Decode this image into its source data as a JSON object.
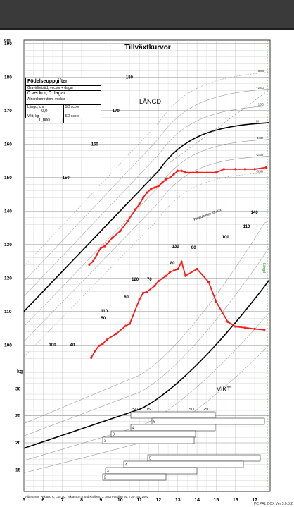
{
  "chart_data": {
    "type": "line",
    "title": "Tillväxtkurvor",
    "height_label": "LÄNGD",
    "weight_label": "VIKT",
    "height_unit": "cm",
    "weight_unit": "kg",
    "x_ticks": [
      "5",
      "6",
      "7",
      "8",
      "9",
      "10",
      "11",
      "12",
      "13",
      "14",
      "15",
      "16",
      "17"
    ],
    "xlim": [
      5,
      17.8
    ],
    "height_axis": {
      "ticks": [
        "190",
        "180",
        "170",
        "160",
        "150",
        "140",
        "130",
        "120",
        "110",
        "100"
      ],
      "ylim": [
        95,
        191
      ]
    },
    "weight_axis": {
      "ticks": [
        "30",
        "25",
        "20",
        "15"
      ],
      "ylim": [
        11,
        35
      ]
    },
    "inner_height_labels": [
      "180",
      "170",
      "160",
      "150",
      "140",
      "130",
      "120",
      "110",
      "100"
    ],
    "inner_weight_labels": [
      "110",
      "100",
      "90",
      "80",
      "70",
      "60",
      "50",
      "40"
    ],
    "sd_labels": [
      "+3SD",
      "+2SD",
      "+1SD",
      "M",
      "-1SD",
      "-2SD",
      "-3SD"
    ],
    "prepubertal_label": "Prepubertal tillväxt",
    "height_series": {
      "name": "Längd",
      "x": [
        8.4,
        8.6,
        8.8,
        9.0,
        9.2,
        9.6,
        10.0,
        10.4,
        10.8,
        11.0,
        11.2,
        11.4,
        11.6,
        11.8,
        12.0,
        12.2,
        12.4,
        12.6,
        12.8,
        13.0,
        13.2,
        13.4,
        14.0,
        15.0,
        15.4,
        16.0,
        16.5,
        17.0,
        17.6
      ],
      "values": [
        124.0,
        125.0,
        127.0,
        129.0,
        129.5,
        132.0,
        134.0,
        137.0,
        140.5,
        142.0,
        144.0,
        145.5,
        146.5,
        147.0,
        147.5,
        148.5,
        149.5,
        150.0,
        151.0,
        152.0,
        152.0,
        151.5,
        151.5,
        151.5,
        152.5,
        152.5,
        152.5,
        152.5,
        153.0
      ]
    },
    "weight_series": {
      "name": "Vikt",
      "x": [
        8.5,
        8.7,
        8.9,
        9.1,
        9.3,
        9.8,
        10.3,
        10.5,
        11.0,
        11.2,
        11.4,
        11.8,
        12.0,
        12.4,
        12.6,
        12.8,
        13.0,
        13.2,
        13.4,
        14.0,
        14.6,
        15.0,
        15.6,
        16.0,
        16.5,
        17.0,
        17.5
      ],
      "values": [
        31.0,
        32.7,
        34.0,
        34.5,
        35.5,
        37.0,
        39.0,
        39.5,
        45.5,
        47.2,
        47.5,
        49.0,
        50.2,
        51.5,
        52.5,
        52.8,
        53.2,
        55.0,
        51.5,
        53.2,
        50.0,
        45.0,
        40.0,
        38.8,
        38.5,
        38.2,
        38.0
      ]
    },
    "skeletal_rows": [
      "5",
      "4",
      "3",
      "2",
      "5",
      "4",
      "3",
      "2"
    ],
    "skeletal_header": [
      "2SD",
      "1SD",
      "1SD",
      "2SD"
    ],
    "reference_text": "Albertsson Wikland K, Luo ZC, Niklasson A and Karlberg J.  Acta Paediatr 91: 739-754, 2002",
    "side_label": "Längd",
    "colors": {
      "patient": "#ff1a1a",
      "median": "#000000",
      "sd": "#808080",
      "grid": "#b8b8b8"
    }
  },
  "info_box": {
    "title": "Födelseuppgifter",
    "gestational_label": "Graviditetstid, veckor + dagar",
    "gestational_value": "0 veckor, 0 dagar",
    "age_correction_label": "Ålderskorrektion, veckor",
    "length_label": "Längd, cm",
    "length_value": "0,0",
    "sd_score_label": "SD score",
    "weight_label": "Vikt, kg",
    "weight_value": "0,000",
    "sd_score_label_2": "SD score"
  },
  "footer": {
    "version": "PC PAL OCX Ver 3.0.0.2"
  }
}
